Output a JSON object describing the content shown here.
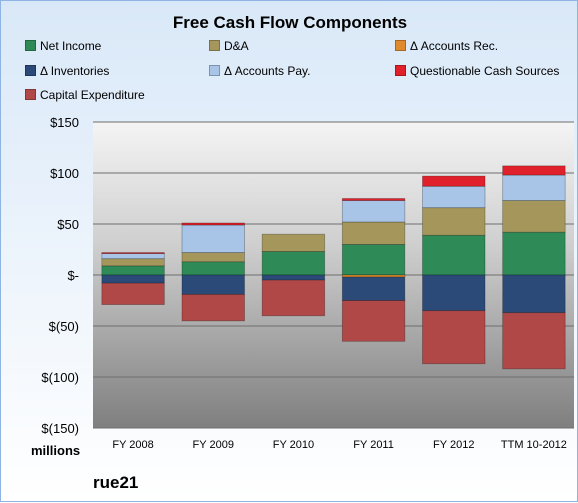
{
  "chart_data": {
    "type": "bar",
    "stacked": true,
    "title": "Free Cash Flow Components",
    "units_label": "millions",
    "company": "rue21",
    "categories": [
      "FY 2008",
      "FY 2009",
      "FY 2010",
      "FY 2011",
      "FY 2012",
      "TTM 10-2012"
    ],
    "ylim": [
      -150,
      150
    ],
    "yticks": [
      150,
      100,
      50,
      0,
      -50,
      -100,
      -150
    ],
    "ytick_labels": [
      "$150",
      "$100",
      "$50",
      "$-",
      "$(50)",
      "$(100)",
      "$(150)"
    ],
    "legend_position": "top",
    "series": [
      {
        "name": "Net Income",
        "color": "#2e8b57",
        "values": [
          9,
          13,
          23,
          30,
          39,
          42
        ]
      },
      {
        "name": "D&A",
        "color": "#a5975c",
        "values": [
          7,
          9,
          17,
          22,
          27,
          31
        ]
      },
      {
        "name": "Δ Accounts Rec.",
        "color": "#e08a2e",
        "values": [
          0,
          0,
          0,
          -2,
          0,
          0
        ]
      },
      {
        "name": "Δ Inventories",
        "color": "#2b4a78",
        "values": [
          -8,
          -19,
          -5,
          -23,
          -35,
          -37
        ]
      },
      {
        "name": "Δ Accounts Pay.",
        "color": "#a8c4e6",
        "values": [
          5,
          27,
          0,
          21,
          21,
          25
        ]
      },
      {
        "name": "Questionable Cash Sources",
        "color": "#e0202a",
        "values": [
          1,
          2,
          0,
          2,
          10,
          9
        ]
      },
      {
        "name": "Capital Expenditure",
        "color": "#b04848",
        "values": [
          -21,
          -26,
          -35,
          -40,
          -52,
          -55
        ]
      }
    ]
  }
}
